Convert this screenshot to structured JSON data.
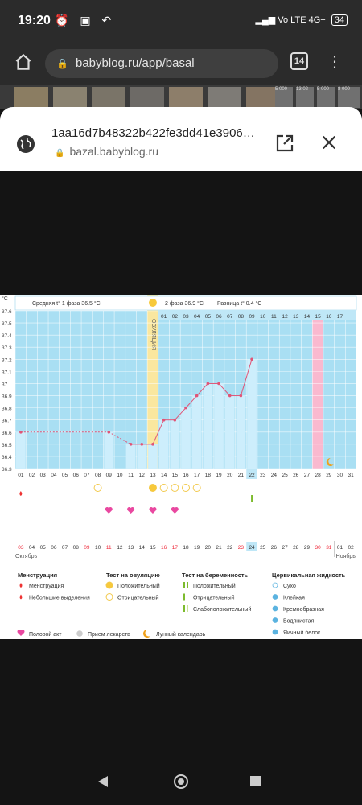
{
  "status": {
    "time": "19:20",
    "icons_left": "⏰ ▣ ↶",
    "net": "Vo LTE 4G+",
    "battery": "34"
  },
  "browser": {
    "url": "babyblog.ru/app/basal",
    "tabs": "14"
  },
  "sheet": {
    "title": "1aa16d7b48322b422fe3dd41e3906…",
    "url": "bazal.babyblog.ru"
  },
  "thumb_labels": [
    "5 000",
    "13 02",
    "5 000",
    "8 000"
  ],
  "chart": {
    "unit": "°C",
    "phase1": "Средняя t° 1 фаза 36.5 °C",
    "phase2": "2 фаза 36.9 °C",
    "diff": "Разница t° 0.4 °C",
    "ovulation_label": "ОВУЛЯЦИЯ",
    "header_cycle_days": [
      "01",
      "02",
      "03",
      "04",
      "05",
      "06",
      "07",
      "08",
      "09",
      "10",
      "11",
      "12",
      "13",
      "14",
      "15",
      "16",
      "17"
    ],
    "month_start": "Октябрь",
    "month_end": "Ноябрь"
  },
  "chart_data": {
    "type": "line",
    "title": "",
    "y_ticks": [
      "37.6",
      "37.5",
      "37.4",
      "37.3",
      "37.2",
      "37.1",
      "37",
      "36.9",
      "36.8",
      "36.7",
      "36.6",
      "36.5",
      "36.4",
      "36.3"
    ],
    "ylim": [
      36.3,
      37.6
    ],
    "cycle_days": [
      "01",
      "02",
      "03",
      "04",
      "05",
      "06",
      "07",
      "08",
      "09",
      "10",
      "11",
      "12",
      "13",
      "14",
      "15",
      "16",
      "17",
      "18",
      "19",
      "20",
      "21",
      "22",
      "23",
      "24",
      "25",
      "26",
      "27",
      "28",
      "29",
      "30",
      "31"
    ],
    "dates": [
      "03",
      "04",
      "05",
      "06",
      "07",
      "08",
      "09",
      "10",
      "11",
      "12",
      "13",
      "14",
      "15",
      "16",
      "17",
      "18",
      "19",
      "20",
      "21",
      "22",
      "23",
      "24",
      "25",
      "26",
      "27",
      "28",
      "29",
      "30",
      "31",
      "01",
      "02"
    ],
    "series": [
      {
        "values": [
          36.6,
          null,
          null,
          null,
          null,
          null,
          null,
          null,
          36.6,
          null,
          36.5,
          36.5,
          36.5,
          36.7,
          36.7,
          36.8,
          36.9,
          37.0,
          37.0,
          36.9,
          36.9,
          37.2,
          null,
          null,
          null,
          null,
          null,
          null,
          null,
          null,
          null
        ]
      }
    ],
    "ovulation_day": "13",
    "highlighted_day": "28",
    "today_day": "22",
    "today_date": "24"
  },
  "legend": {
    "menstruation": {
      "title": "Менструация",
      "items": [
        "Менструация",
        "Небольшие выделения"
      ]
    },
    "ovulation_test": {
      "title": "Тест на овуляцию",
      "items": [
        "Положительный",
        "Отрицательный"
      ]
    },
    "pregnancy_test": {
      "title": "Тест на беременность",
      "items": [
        "Положительный",
        "Отрицательный",
        "Слабоположительный"
      ]
    },
    "cervical": {
      "title": "Цервикальная жидкость",
      "items": [
        "Сухо",
        "Клейкая",
        "Кремообразная",
        "Водянистая",
        "Яичный белок"
      ]
    },
    "bottom": [
      "Половой акт",
      "Прием лекарств",
      "Лунный календарь"
    ]
  },
  "colors": {
    "sky": "#a9dff3",
    "pink_band": "#f9b9cf",
    "ovulation": "#fae79f",
    "line": "#e05577",
    "bar": "#cdeefc",
    "header_blue": "#bfe7f7"
  }
}
